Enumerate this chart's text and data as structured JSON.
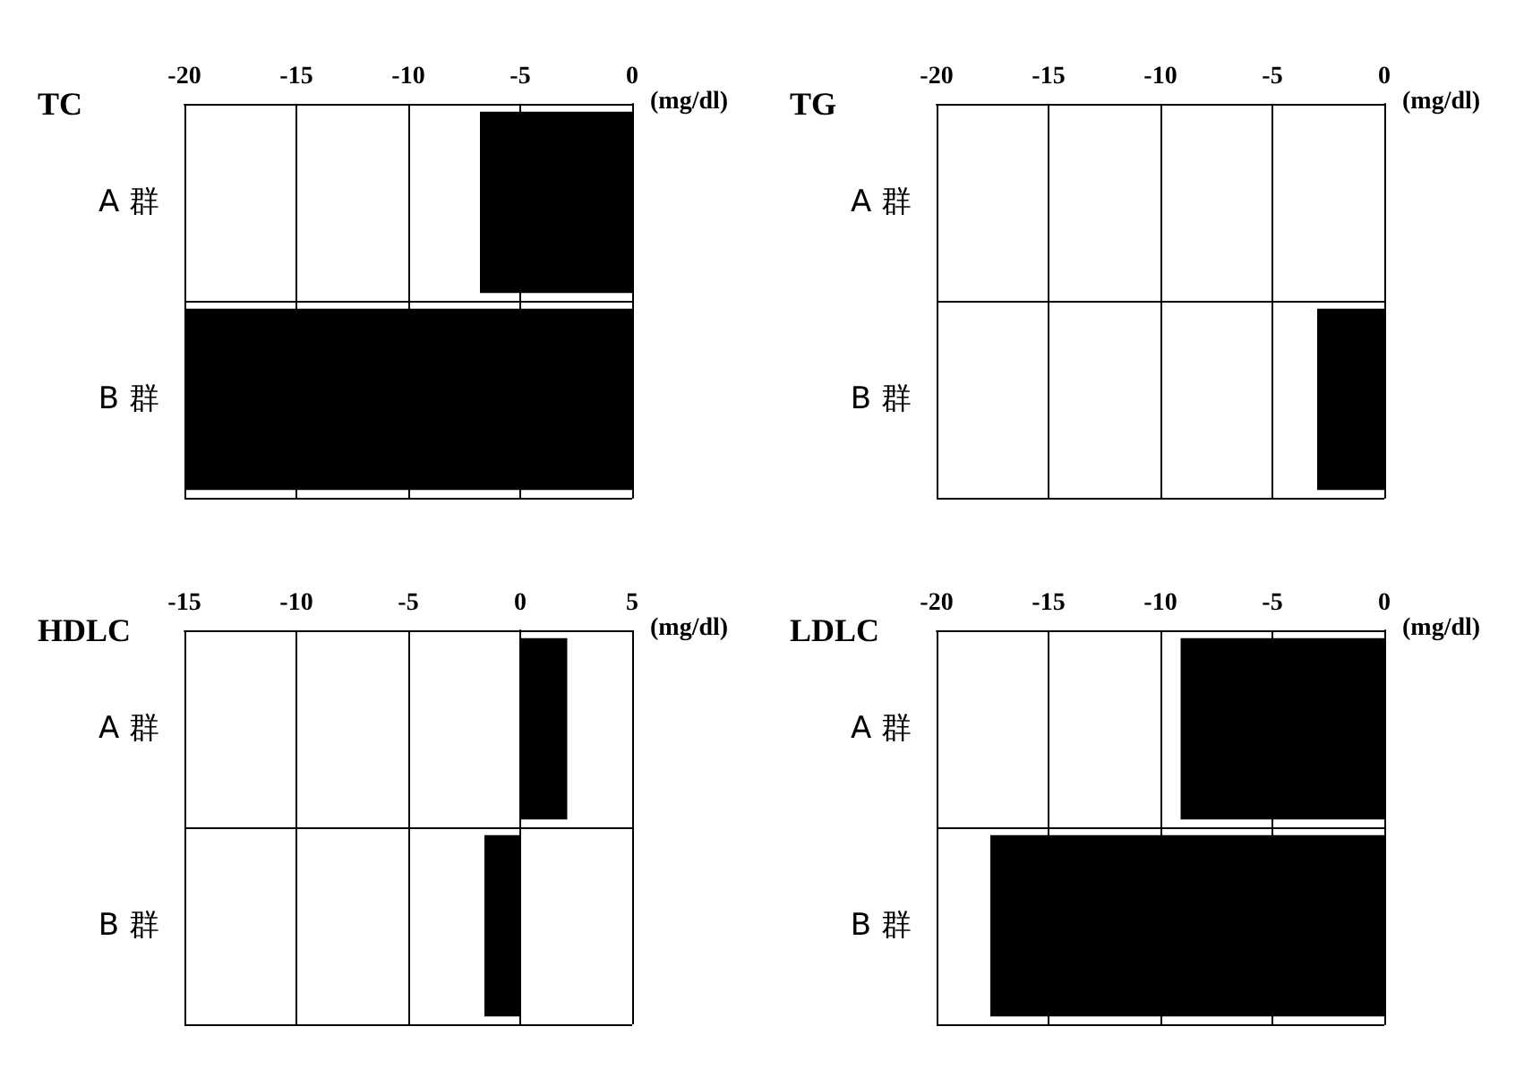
{
  "chart_data": [
    {
      "type": "bar",
      "orientation": "horizontal",
      "title": "TC",
      "xlabel": "(mg/dl)",
      "categories": [
        "A 群",
        "B 群"
      ],
      "values": [
        -6.8,
        -20
      ],
      "color": "#000000",
      "xlim": [
        -20,
        0
      ],
      "xticks": [
        -20,
        -15,
        -10,
        -5,
        0
      ],
      "grid": true
    },
    {
      "type": "bar",
      "orientation": "horizontal",
      "title": "TG",
      "xlabel": "(mg/dl)",
      "categories": [
        "A 群",
        "B 群"
      ],
      "values": [
        0,
        -3
      ],
      "color": "#000000",
      "xlim": [
        -20,
        0
      ],
      "xticks": [
        -20,
        -15,
        -10,
        -5,
        0
      ],
      "grid": true
    },
    {
      "type": "bar",
      "orientation": "horizontal",
      "title": "HDLC",
      "xlabel": "(mg/dl)",
      "categories": [
        "A 群",
        "B 群"
      ],
      "values": [
        2.1,
        -1.6
      ],
      "color": "#000000",
      "xlim": [
        -15,
        5
      ],
      "xticks": [
        -15,
        -10,
        -5,
        0,
        5
      ],
      "grid": true
    },
    {
      "type": "bar",
      "orientation": "horizontal",
      "title": "LDLC",
      "xlabel": "(mg/dl)",
      "categories": [
        "A 群",
        "B 群"
      ],
      "values": [
        -9.1,
        -17.6
      ],
      "color": "#000000",
      "xlim": [
        -20,
        0
      ],
      "xticks": [
        -20,
        -15,
        -10,
        -5,
        0
      ],
      "grid": true
    }
  ]
}
